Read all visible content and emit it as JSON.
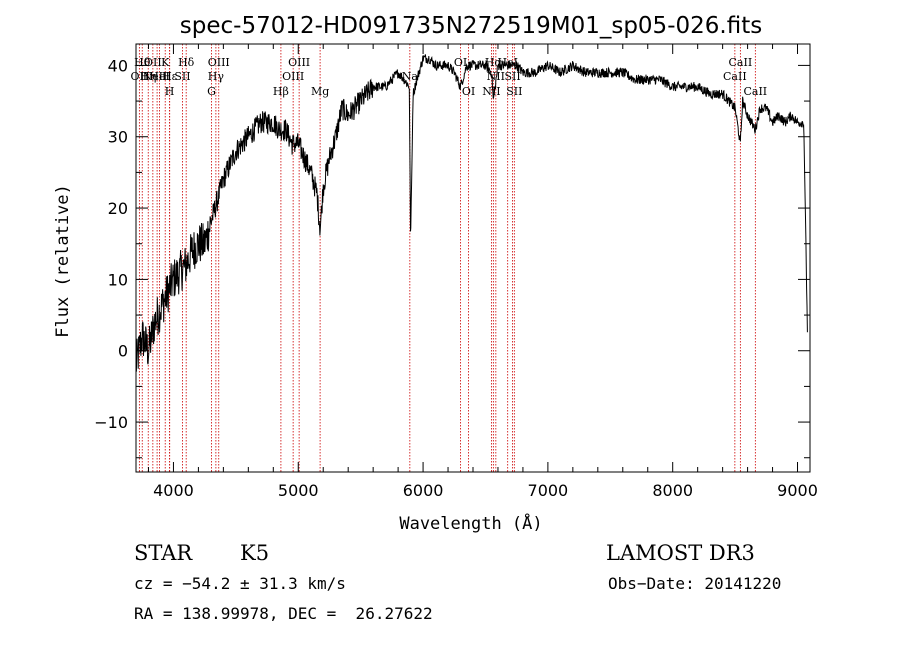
{
  "chart_data": {
    "type": "line",
    "title": "spec-57012-HD091735N272519M01_sp05-026.fits",
    "xlabel": "Wavelength (Å)",
    "ylabel": "Flux (relative)",
    "xlim": [
      3700,
      9100
    ],
    "ylim": [
      -17,
      43
    ],
    "x_ticks": [
      4000,
      5000,
      6000,
      7000,
      8000,
      9000
    ],
    "y_ticks": [
      -10,
      0,
      10,
      20,
      30,
      40
    ],
    "series": [
      {
        "name": "spectrum",
        "x": [
          3700,
          3750,
          3800,
          3850,
          3900,
          3950,
          4000,
          4050,
          4100,
          4150,
          4200,
          4250,
          4300,
          4350,
          4400,
          4500,
          4600,
          4700,
          4800,
          4850,
          4900,
          4950,
          5000,
          5050,
          5100,
          5150,
          5175,
          5200,
          5250,
          5300,
          5350,
          5400,
          5450,
          5500,
          5550,
          5600,
          5700,
          5800,
          5850,
          5890,
          5900,
          5920,
          5950,
          6000,
          6050,
          6100,
          6150,
          6200,
          6250,
          6300,
          6350,
          6400,
          6450,
          6500,
          6550,
          6563,
          6600,
          6650,
          6700,
          6750,
          6800,
          6900,
          7000,
          7100,
          7200,
          7300,
          7400,
          7500,
          7600,
          7700,
          7800,
          7900,
          8000,
          8100,
          8200,
          8300,
          8400,
          8450,
          8500,
          8542,
          8560,
          8600,
          8662,
          8700,
          8750,
          8800,
          8850,
          8900,
          8950,
          9000,
          9050,
          9080
        ],
        "y": [
          -2,
          2,
          0,
          4,
          6,
          8,
          10,
          11,
          12,
          14,
          15,
          15,
          18,
          21,
          24,
          28,
          30,
          32,
          32,
          31,
          31,
          29,
          29,
          27,
          25,
          22,
          17,
          23,
          27,
          30,
          34,
          33,
          34,
          35,
          36,
          37,
          37,
          39,
          38,
          37,
          15,
          36,
          38,
          41,
          41,
          40,
          40,
          40,
          39,
          37,
          40,
          40,
          40,
          40,
          39,
          35,
          40,
          40,
          40,
          40,
          39,
          39,
          40,
          39,
          40,
          39,
          39,
          39,
          39,
          38,
          38,
          38,
          37,
          37,
          37,
          36,
          36,
          35,
          34,
          29,
          35,
          33,
          31,
          34,
          34,
          32,
          33,
          32,
          33,
          32,
          32,
          2
        ]
      }
    ],
    "line_markers": [
      {
        "wave": 3727,
        "label": "OII",
        "row": 2
      },
      {
        "wave": 3750,
        "label": "Hθ",
        "row": 1
      },
      {
        "wave": 3798,
        "label": "Hη",
        "row": 2
      },
      {
        "wave": 3835,
        "label": "OII",
        "row": 1
      },
      {
        "wave": 3869,
        "label": "NeIII",
        "row": 2
      },
      {
        "wave": 3889,
        "label": "HeI",
        "row": 2
      },
      {
        "wave": 3934,
        "label": "K",
        "row": 1
      },
      {
        "wave": 3969,
        "label": "H",
        "row": 3
      },
      {
        "wave": 3970,
        "label": "Hε",
        "row": 2
      },
      {
        "wave": 4072,
        "label": "SII",
        "row": 2
      },
      {
        "wave": 4102,
        "label": "Hδ",
        "row": 1
      },
      {
        "wave": 4305,
        "label": "G",
        "row": 3
      },
      {
        "wave": 4340,
        "label": "Hγ",
        "row": 2
      },
      {
        "wave": 4363,
        "label": "OIII",
        "row": 1
      },
      {
        "wave": 4861,
        "label": "Hβ",
        "row": 3
      },
      {
        "wave": 4959,
        "label": "OIII",
        "row": 2
      },
      {
        "wave": 5007,
        "label": "OIII",
        "row": 1
      },
      {
        "wave": 5175,
        "label": "Mg",
        "row": 3
      },
      {
        "wave": 5894,
        "label": "Na",
        "row": 2
      },
      {
        "wave": 6300,
        "label": "OI",
        "row": 1
      },
      {
        "wave": 6364,
        "label": "OI",
        "row": 3
      },
      {
        "wave": 6548,
        "label": "NII",
        "row": 3
      },
      {
        "wave": 6563,
        "label": "Hα",
        "row": 1
      },
      {
        "wave": 6583,
        "label": "NII",
        "row": 2
      },
      {
        "wave": 6678,
        "label": "HeI",
        "row": 1
      },
      {
        "wave": 6717,
        "label": "SII",
        "row": 2
      },
      {
        "wave": 6731,
        "label": "SII",
        "row": 3
      },
      {
        "wave": 8498,
        "label": "CaII",
        "row": 2
      },
      {
        "wave": 8542,
        "label": "CaII",
        "row": 1
      },
      {
        "wave": 8662,
        "label": "CaII",
        "row": 3
      }
    ]
  },
  "info": {
    "class_label": "STAR",
    "subclass": "K5",
    "survey": "LAMOST DR3",
    "cz": "cz = −54.2 ± 31.3 km/s",
    "obs_date": "Obs−Date: 20141220",
    "radec": "RA = 138.99978, DEC =  26.27622"
  },
  "colors": {
    "spectrum": "#000000",
    "marker": "#cc0000",
    "axes": "#000000"
  }
}
